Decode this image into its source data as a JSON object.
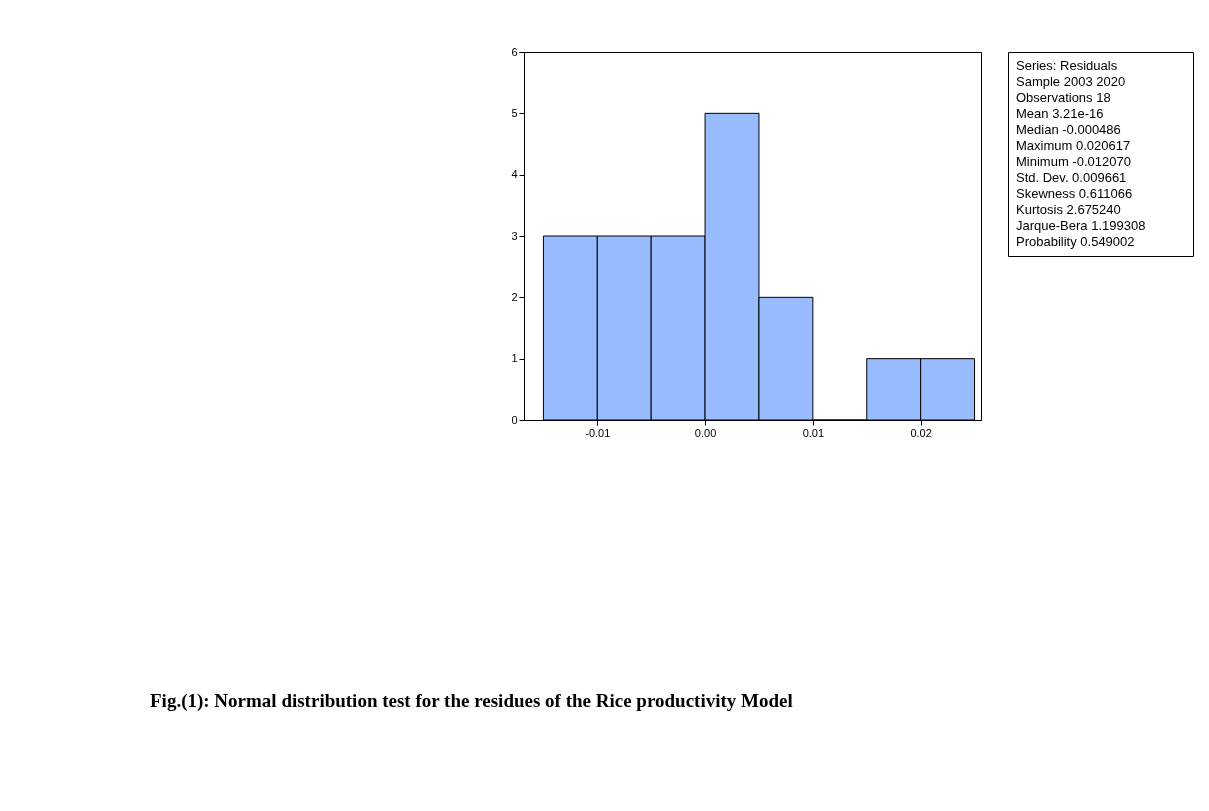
{
  "chart_data": {
    "type": "histogram",
    "title": "Fig.(1): Normal distribution test for the residues of the Rice productivity Model",
    "bins": [
      -0.015,
      -0.01,
      -0.005,
      0,
      0.005,
      0.01,
      0.015,
      0.02,
      0.025
    ],
    "values": [
      3,
      3,
      3,
      5,
      2,
      0,
      1,
      1
    ],
    "color": "#99bbff",
    "xlim": [
      -0.0168,
      0.0256
    ],
    "xticks": [
      {
        "value": -0.01,
        "label": "-0.01"
      },
      {
        "value": 0,
        "label": "0.00"
      },
      {
        "value": 0.01,
        "label": "0.01"
      },
      {
        "value": 0.02,
        "label": "0.02"
      }
    ],
    "ylim": [
      0,
      6
    ],
    "yticks": [
      0,
      1,
      2,
      3,
      4,
      5,
      6
    ],
    "grid": false,
    "annotations": [
      "Series: Residuals",
      "Sample 2003 2020",
      "Observations 18",
      "Mean 3.21e-16",
      "Median -0.000486",
      "Maximum 0.020617",
      "Minimum -0.012070",
      "Std. Dev. 0.009661",
      "Skewness 0.611066",
      "Kurtosis 2.675240",
      "Jarque-Bera 1.199308",
      "Probability 0.549002"
    ]
  }
}
